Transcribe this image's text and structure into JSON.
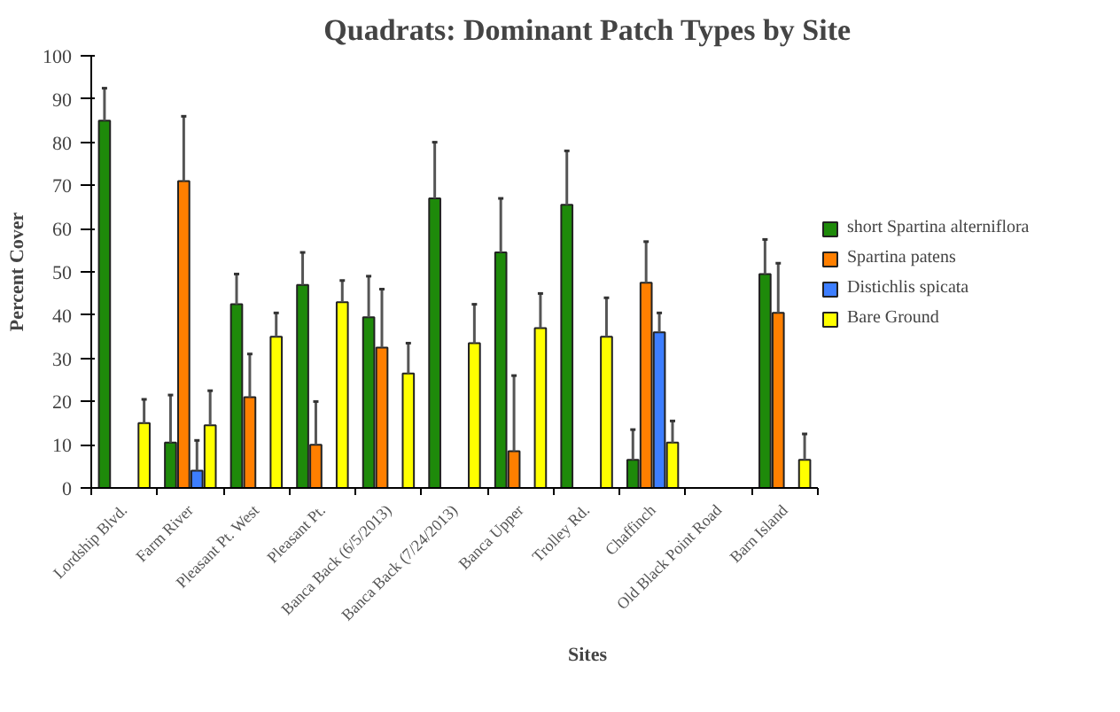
{
  "chart_data": {
    "type": "bar",
    "title": "Quadrats: Dominant Patch Types by Site",
    "xlabel": "Sites",
    "ylabel": "Percent Cover",
    "categories": [
      "Lordship Blvd.",
      "Farm River",
      "Pleasant Pt. West",
      "Pleasant Pt.",
      "Banca Back (6/5/2013)",
      "Banca Back (7/24/2013)",
      "Banca Upper",
      "Trolley Rd.",
      "Chaffinch",
      "Old Black Point Road",
      "Barn Island"
    ],
    "ylim": [
      0,
      100
    ],
    "yticks": [
      0,
      10,
      20,
      30,
      40,
      50,
      60,
      70,
      80,
      90,
      100
    ],
    "grid": false,
    "legend": "right",
    "series": [
      {
        "name": "short Spartina alterniflora",
        "color": "#1e8a0a",
        "values": [
          85,
          10.5,
          42.5,
          47,
          39.5,
          67,
          54.5,
          65.5,
          6.5,
          null,
          49.5
        ],
        "errors": [
          [
            85,
            92.5
          ],
          [
            10.5,
            21.5
          ],
          [
            42.5,
            49.5
          ],
          [
            47,
            54.5
          ],
          [
            39.5,
            49
          ],
          [
            67,
            80
          ],
          [
            54.5,
            67
          ],
          [
            65.5,
            78
          ],
          [
            6.5,
            13.5
          ],
          null,
          [
            49.5,
            57.5
          ]
        ]
      },
      {
        "name": "Spartina patens",
        "color": "#ff7f00",
        "values": [
          null,
          71,
          21,
          10,
          32.5,
          null,
          8.5,
          null,
          47.5,
          null,
          40.5
        ],
        "errors": [
          null,
          [
            71,
            86
          ],
          [
            21,
            31
          ],
          [
            10,
            20
          ],
          [
            32.5,
            46
          ],
          null,
          [
            8.5,
            26
          ],
          null,
          [
            47.5,
            57
          ],
          null,
          [
            40.5,
            52
          ]
        ]
      },
      {
        "name": "Distichlis spicata",
        "color": "#3d7eff",
        "values": [
          null,
          4,
          null,
          null,
          null,
          null,
          null,
          null,
          36,
          null,
          null
        ],
        "errors": [
          null,
          [
            4,
            11
          ],
          null,
          null,
          null,
          null,
          null,
          null,
          [
            36,
            40.5
          ],
          null,
          null
        ]
      },
      {
        "name": "Bare Ground",
        "color": "#ffff00",
        "values": [
          15,
          14.5,
          35,
          43,
          26.5,
          33.5,
          37,
          35,
          10.5,
          null,
          6.5
        ],
        "errors": [
          [
            15,
            20.5
          ],
          [
            14.5,
            22.5
          ],
          [
            35,
            40.5
          ],
          [
            43,
            48
          ],
          [
            26.5,
            33.5
          ],
          [
            33.5,
            42.5
          ],
          [
            37,
            45
          ],
          [
            35,
            44
          ],
          [
            10.5,
            15.5
          ],
          null,
          [
            6.5,
            12.5
          ]
        ]
      }
    ]
  }
}
